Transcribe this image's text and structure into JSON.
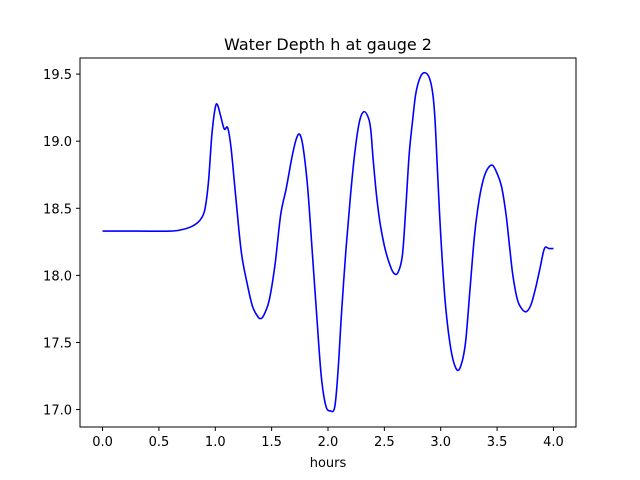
{
  "chart_data": {
    "type": "line",
    "title": "Water Depth h at gauge 2",
    "xlabel": "hours",
    "ylabel": "",
    "xlim": [
      -0.2,
      4.2
    ],
    "ylim": [
      16.87,
      19.62
    ],
    "xticks": [
      0.0,
      0.5,
      1.0,
      1.5,
      2.0,
      2.5,
      3.0,
      3.5,
      4.0
    ],
    "xtick_labels": [
      "0.0",
      "0.5",
      "1.0",
      "1.5",
      "2.0",
      "2.5",
      "3.0",
      "3.5",
      "4.0"
    ],
    "yticks": [
      17.0,
      17.5,
      18.0,
      18.5,
      19.0,
      19.5
    ],
    "ytick_labels": [
      "17.0",
      "17.5",
      "18.0",
      "18.5",
      "19.0",
      "19.5"
    ],
    "grid": false,
    "series": [
      {
        "color": "#0000ff",
        "x": [
          0.0,
          0.3,
          0.6,
          0.7,
          0.78,
          0.84,
          0.88,
          0.91,
          0.94,
          0.97,
          1.0,
          1.02,
          1.05,
          1.08,
          1.11,
          1.14,
          1.18,
          1.23,
          1.28,
          1.33,
          1.38,
          1.41,
          1.44,
          1.48,
          1.53,
          1.58,
          1.63,
          1.68,
          1.72,
          1.75,
          1.78,
          1.82,
          1.86,
          1.9,
          1.94,
          1.98,
          2.02,
          2.06,
          2.09,
          2.12,
          2.16,
          2.2,
          2.24,
          2.28,
          2.32,
          2.36,
          2.38,
          2.4,
          2.43,
          2.46,
          2.5,
          2.54,
          2.58,
          2.62,
          2.66,
          2.69,
          2.72,
          2.75,
          2.78,
          2.82,
          2.86,
          2.9,
          2.93,
          2.95,
          2.97,
          3.0,
          3.04,
          3.09,
          3.14,
          3.18,
          3.22,
          3.26,
          3.3,
          3.34,
          3.38,
          3.42,
          3.46,
          3.5,
          3.54,
          3.58,
          3.61,
          3.64,
          3.68,
          3.72,
          3.76,
          3.8,
          3.84,
          3.88,
          3.92,
          3.96,
          4.0
        ],
        "values": [
          18.33,
          18.33,
          18.33,
          18.34,
          18.36,
          18.39,
          18.43,
          18.5,
          18.7,
          19.05,
          19.25,
          19.27,
          19.18,
          19.09,
          19.1,
          18.95,
          18.6,
          18.18,
          17.95,
          17.77,
          17.69,
          17.68,
          17.72,
          17.82,
          18.08,
          18.45,
          18.65,
          18.88,
          19.02,
          19.05,
          18.95,
          18.65,
          18.18,
          17.7,
          17.25,
          17.03,
          16.99,
          17.02,
          17.3,
          17.72,
          18.2,
          18.6,
          18.93,
          19.15,
          19.22,
          19.17,
          19.08,
          18.87,
          18.6,
          18.4,
          18.22,
          18.1,
          18.02,
          18.02,
          18.15,
          18.5,
          18.9,
          19.15,
          19.36,
          19.48,
          19.51,
          19.47,
          19.35,
          19.15,
          18.8,
          18.3,
          17.8,
          17.45,
          17.3,
          17.33,
          17.5,
          17.9,
          18.3,
          18.56,
          18.72,
          18.8,
          18.82,
          18.76,
          18.66,
          18.45,
          18.22,
          18.0,
          17.82,
          17.75,
          17.73,
          17.78,
          17.9,
          18.05,
          18.2,
          18.2,
          18.2
        ]
      }
    ]
  }
}
